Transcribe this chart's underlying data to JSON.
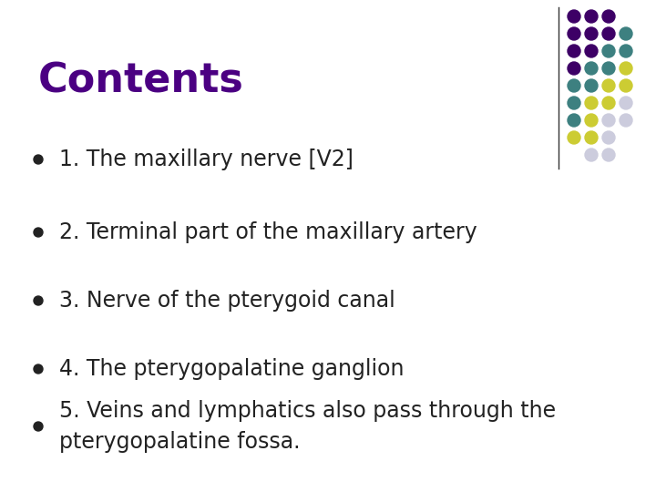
{
  "title": "Contents",
  "title_color": "#4B0082",
  "title_fontsize": 32,
  "title_bold": true,
  "background_color": "#FFFFFF",
  "bullet_items": [
    "1. The maxillary nerve [V2]",
    "2. Terminal part of the maxillary artery",
    "3. Nerve of the pterygoid canal",
    "4. The pterygopalatine ganglion",
    "5. Veins and lymphatics also pass through the\npterygopalatine fossa."
  ],
  "bullet_color": "#222222",
  "bullet_fontsize": 17,
  "bullet_dot_color": "#222222",
  "divider_color": "#333333",
  "dot_grid": {
    "rows": 9,
    "cols": 4,
    "colors": [
      [
        "#3d0066",
        "#3d0066",
        "#3d0066",
        "none"
      ],
      [
        "#3d0066",
        "#3d0066",
        "#3d0066",
        "#3d8080"
      ],
      [
        "#3d0066",
        "#3d0066",
        "#3d8080",
        "#3d8080"
      ],
      [
        "#3d0066",
        "#3d8080",
        "#3d8080",
        "#cccc33"
      ],
      [
        "#3d8080",
        "#3d8080",
        "#cccc33",
        "#cccc33"
      ],
      [
        "#3d8080",
        "#cccc33",
        "#cccc33",
        "#ccccdd"
      ],
      [
        "#3d8080",
        "#cccc33",
        "#ccccdd",
        "#ccccdd"
      ],
      [
        "#cccc33",
        "#cccc33",
        "#ccccdd",
        "none"
      ],
      [
        "none",
        "#ccccdd",
        "#ccccdd",
        "none"
      ]
    ]
  }
}
